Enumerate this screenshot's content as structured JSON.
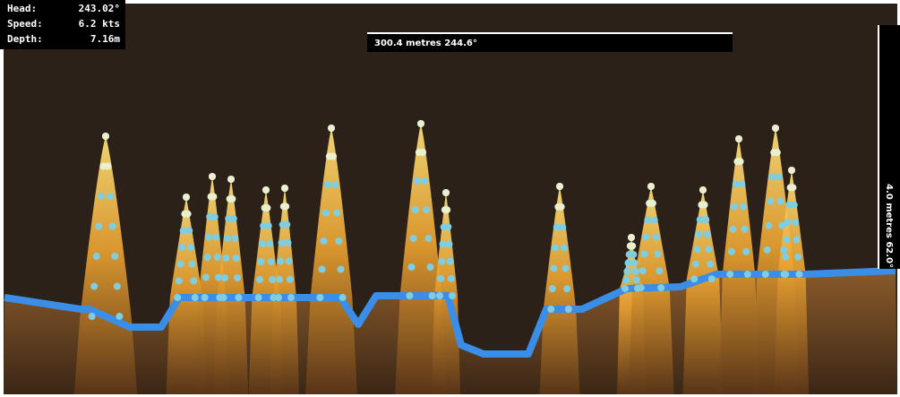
{
  "readout": {
    "rows": [
      {
        "label": "Head:",
        "value": "243.02°"
      },
      {
        "label": "Speed:",
        "value": "6.2 kts"
      },
      {
        "label": "Depth:",
        "value": "7.16m"
      }
    ]
  },
  "horizontal_scale": {
    "label": "300.4 metres 244.6°"
  },
  "vertical_scale": {
    "label": "4.0 metres 62.0°"
  }
}
